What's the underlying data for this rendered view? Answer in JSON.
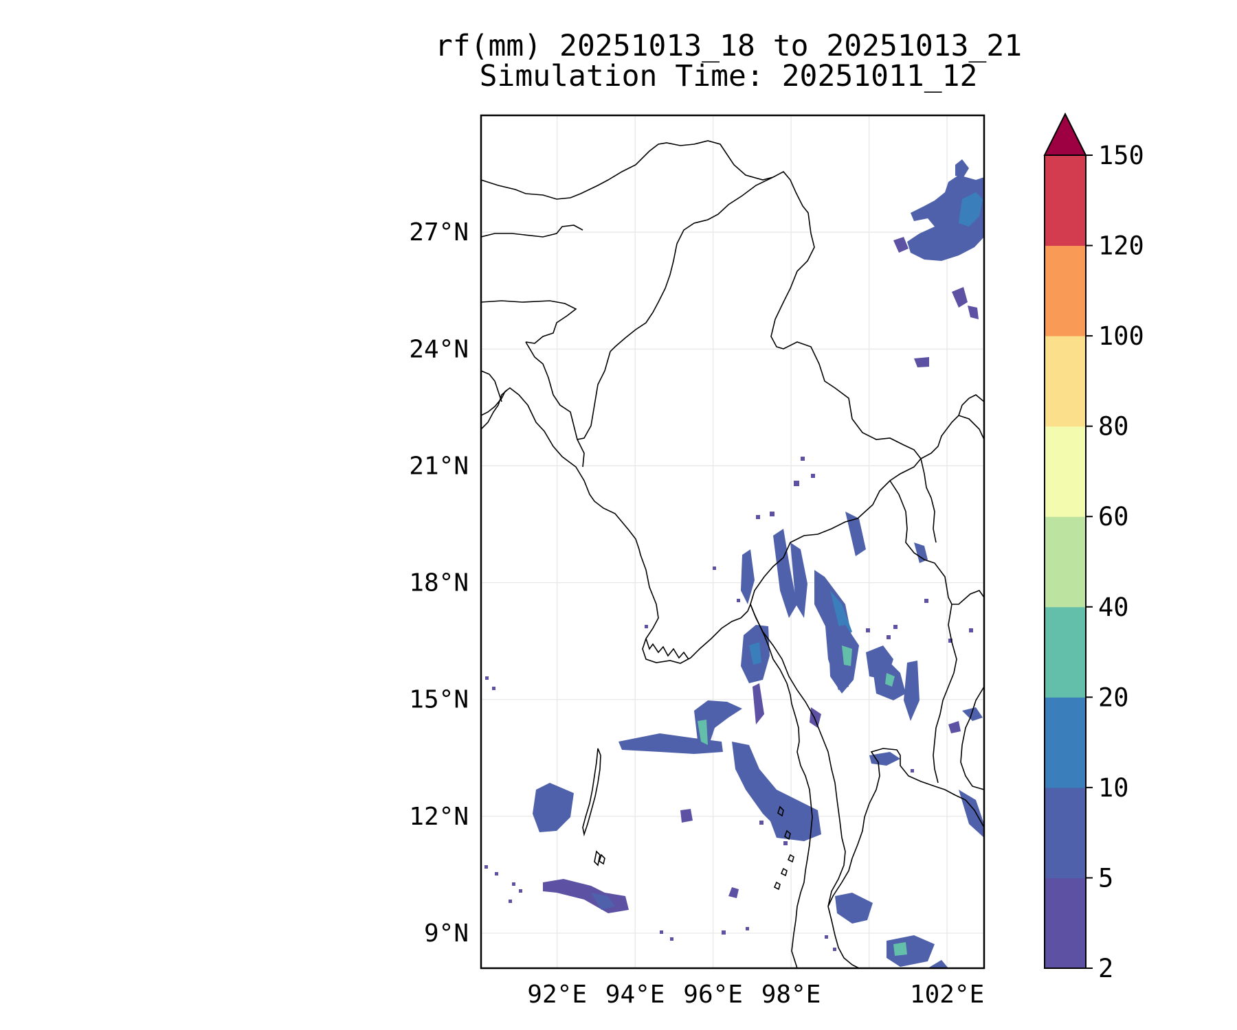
{
  "title": {
    "line1": "rf(mm) 20251013_18 to 20251013_21",
    "line2": "Simulation Time: 20251011_12"
  },
  "map": {
    "variable": "rf(mm)",
    "lon_ticks": [
      "92°E",
      "94°E",
      "96°E",
      "98°E",
      "102°E"
    ],
    "lon_tick_values": [
      92,
      94,
      96,
      98,
      102
    ],
    "lat_ticks": [
      "27°N",
      "24°N",
      "21°N",
      "18°N",
      "15°N",
      "12°N",
      "9°N"
    ],
    "lat_tick_values": [
      27,
      24,
      21,
      18,
      15,
      12,
      9
    ],
    "extent": {
      "lon_min": 90.05,
      "lon_max": 102.95,
      "lat_min": 8.1,
      "lat_max": 30.0
    },
    "gridlines": true,
    "land_fill": "#ffffff",
    "coastline_color": "#000000"
  },
  "colorbar": {
    "levels": [
      "2",
      "5",
      "10",
      "20",
      "40",
      "60",
      "80",
      "100",
      "120",
      "150"
    ],
    "colors": [
      "#5c51a3",
      "#4f61aa",
      "#3a7fbb",
      "#64bfaa",
      "#bde3a0",
      "#f2fbae",
      "#fbdf8a",
      "#f99b57",
      "#d33c4e"
    ],
    "extend_color": "#9e0142",
    "extend": "max"
  },
  "rain_colors": {
    "light": "#5c51a3",
    "moderate": "#4f61aa",
    "heavy": "#3a7fbb",
    "very_heavy": "#64bfaa"
  }
}
